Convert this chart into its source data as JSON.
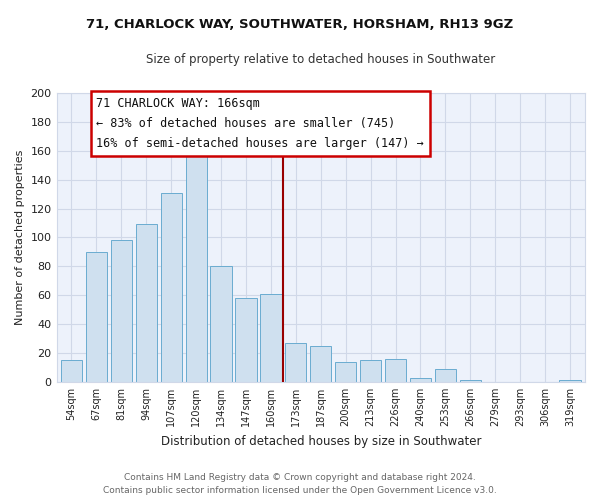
{
  "title": "71, CHARLOCK WAY, SOUTHWATER, HORSHAM, RH13 9GZ",
  "subtitle": "Size of property relative to detached houses in Southwater",
  "xlabel": "Distribution of detached houses by size in Southwater",
  "ylabel": "Number of detached properties",
  "bar_labels": [
    "54sqm",
    "67sqm",
    "81sqm",
    "94sqm",
    "107sqm",
    "120sqm",
    "134sqm",
    "147sqm",
    "160sqm",
    "173sqm",
    "187sqm",
    "200sqm",
    "213sqm",
    "226sqm",
    "240sqm",
    "253sqm",
    "266sqm",
    "279sqm",
    "293sqm",
    "306sqm",
    "319sqm"
  ],
  "bar_values": [
    15,
    90,
    98,
    109,
    131,
    157,
    80,
    58,
    61,
    27,
    25,
    14,
    15,
    16,
    3,
    9,
    1,
    0,
    0,
    0,
    1
  ],
  "bar_color": "#cfe0ef",
  "bar_edge_color": "#6aacd0",
  "vline_x": 8.5,
  "vline_color": "#990000",
  "annotation_title": "71 CHARLOCK WAY: 166sqm",
  "annotation_line1": "← 83% of detached houses are smaller (745)",
  "annotation_line2": "16% of semi-detached houses are larger (147) →",
  "annotation_box_color": "#ffffff",
  "annotation_border_color": "#cc0000",
  "ylim": [
    0,
    200
  ],
  "yticks": [
    0,
    20,
    40,
    60,
    80,
    100,
    120,
    140,
    160,
    180,
    200
  ],
  "footer_line1": "Contains HM Land Registry data © Crown copyright and database right 2024.",
  "footer_line2": "Contains public sector information licensed under the Open Government Licence v3.0.",
  "bg_color": "#ffffff",
  "plot_bg_color": "#edf2fb",
  "grid_color": "#d0d8e8"
}
